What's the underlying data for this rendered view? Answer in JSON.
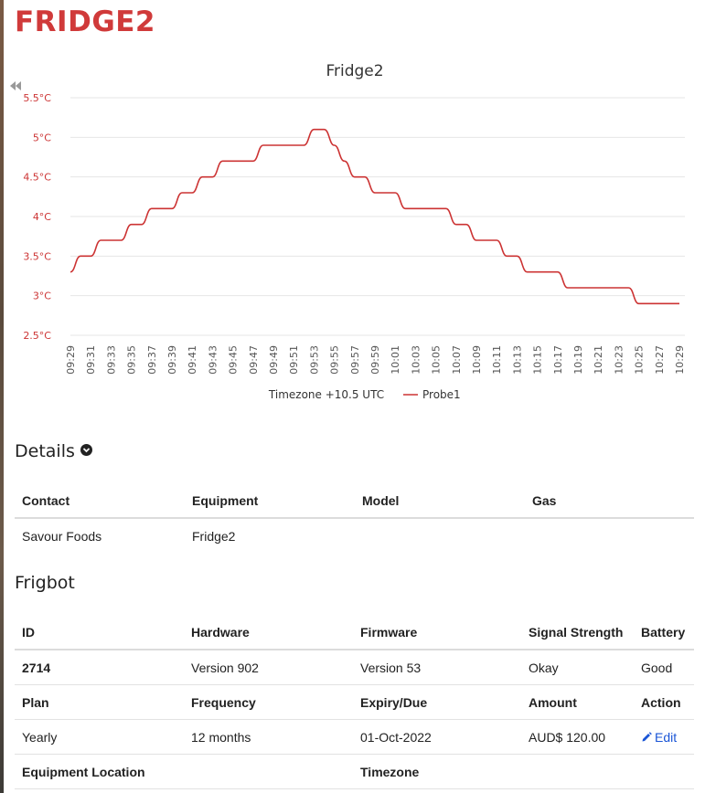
{
  "page": {
    "title": "FRIDGE2"
  },
  "chart_data": {
    "type": "line",
    "title": "Fridge2",
    "xlabel": "Timezone +10.5 UTC",
    "ylabel": "",
    "ylim": [
      2.5,
      5.5
    ],
    "y_ticks": [
      "2.5°C",
      "3°C",
      "3.5°C",
      "4°C",
      "4.5°C",
      "5°C",
      "5.5°C"
    ],
    "y_tick_values": [
      2.5,
      3,
      3.5,
      4,
      4.5,
      5,
      5.5
    ],
    "x_ticks": [
      "09:29",
      "09:31",
      "09:33",
      "09:35",
      "09:37",
      "09:39",
      "09:41",
      "09:43",
      "09:45",
      "09:47",
      "09:49",
      "09:51",
      "09:53",
      "09:55",
      "09:57",
      "09:59",
      "10:01",
      "10:03",
      "10:05",
      "10:07",
      "10:09",
      "10:11",
      "10:13",
      "10:15",
      "10:17",
      "10:19",
      "10:21",
      "10:23",
      "10:25",
      "10:27",
      "10:29"
    ],
    "grid": true,
    "legend": "bottom",
    "series": [
      {
        "name": "Probe1",
        "color": "#cc3333",
        "x": [
          "09:29",
          "09:30",
          "09:31",
          "09:32",
          "09:33",
          "09:34",
          "09:35",
          "09:36",
          "09:37",
          "09:38",
          "09:39",
          "09:40",
          "09:41",
          "09:42",
          "09:43",
          "09:44",
          "09:45",
          "09:46",
          "09:47",
          "09:48",
          "09:49",
          "09:50",
          "09:51",
          "09:52",
          "09:53",
          "09:54",
          "09:55",
          "09:56",
          "09:57",
          "09:58",
          "09:59",
          "10:00",
          "10:01",
          "10:02",
          "10:03",
          "10:04",
          "10:05",
          "10:06",
          "10:07",
          "10:08",
          "10:09",
          "10:10",
          "10:11",
          "10:12",
          "10:13",
          "10:14",
          "10:15",
          "10:16",
          "10:17",
          "10:18",
          "10:19",
          "10:20",
          "10:21",
          "10:22",
          "10:23",
          "10:24",
          "10:25",
          "10:26",
          "10:27",
          "10:28",
          "10:29"
        ],
        "values": [
          3.3,
          3.5,
          3.5,
          3.7,
          3.7,
          3.7,
          3.9,
          3.9,
          4.1,
          4.1,
          4.1,
          4.3,
          4.3,
          4.5,
          4.5,
          4.7,
          4.7,
          4.7,
          4.7,
          4.9,
          4.9,
          4.9,
          4.9,
          4.9,
          5.1,
          5.1,
          4.9,
          4.7,
          4.5,
          4.5,
          4.3,
          4.3,
          4.3,
          4.1,
          4.1,
          4.1,
          4.1,
          4.1,
          3.9,
          3.9,
          3.7,
          3.7,
          3.7,
          3.5,
          3.5,
          3.3,
          3.3,
          3.3,
          3.3,
          3.1,
          3.1,
          3.1,
          3.1,
          3.1,
          3.1,
          3.1,
          2.9,
          2.9,
          2.9,
          2.9,
          2.9
        ]
      }
    ]
  },
  "details": {
    "title": "Details",
    "headers": [
      "Contact",
      "Equipment",
      "Model",
      "Gas"
    ],
    "row": [
      "Savour Foods",
      "Fridge2",
      "",
      ""
    ]
  },
  "frigbot": {
    "title": "Frigbot",
    "headers1": [
      "ID",
      "Hardware",
      "Firmware",
      "Signal Strength",
      "Battery"
    ],
    "row1": [
      "2714",
      "Version 902",
      "Version 53",
      "Okay",
      "Good"
    ],
    "headers2": [
      "Plan",
      "Frequency",
      "Expiry/Due",
      "Amount",
      "Action"
    ],
    "row2": [
      "Yearly",
      "12 months",
      "01-Oct-2022",
      "AUD$ 120.00"
    ],
    "edit_label": "Edit",
    "headers3": [
      "Equipment Location",
      "Timezone"
    ]
  }
}
